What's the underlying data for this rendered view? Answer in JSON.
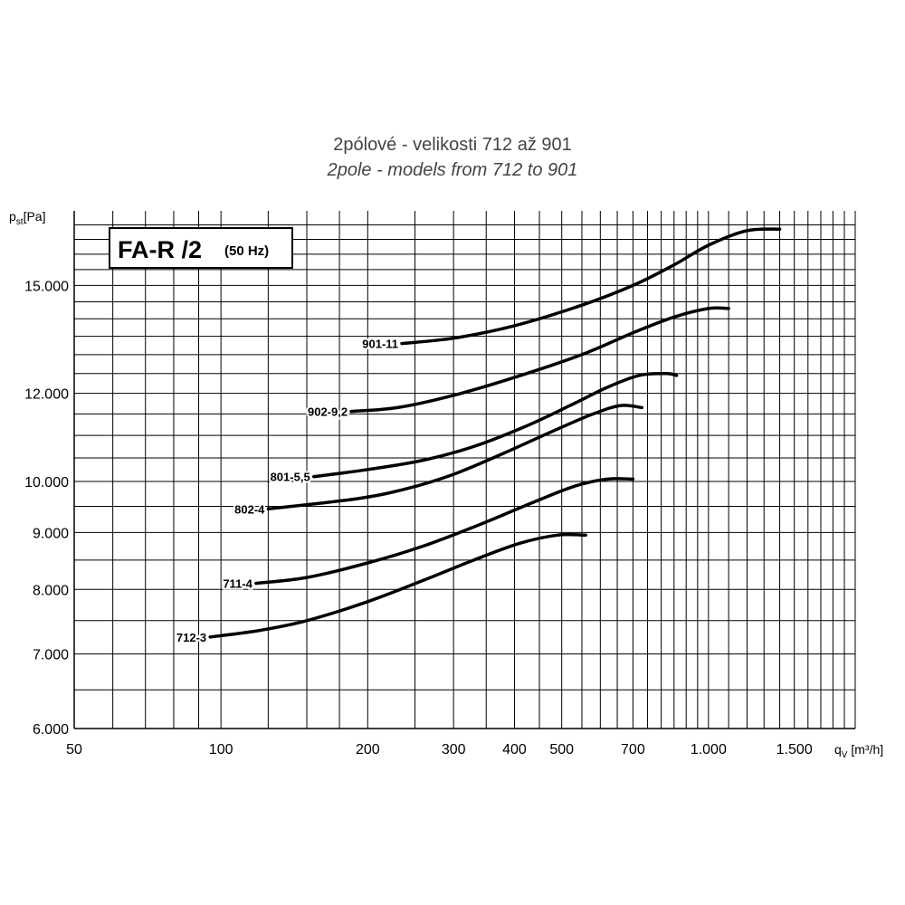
{
  "chart_data": {
    "type": "line",
    "title": "2pólové - velikosti 712 až 901",
    "subtitle": "2pole - models from 712 to 901",
    "ylabel": "[Pa]",
    "ylabel_symbol": "p",
    "ylabel_sub": "st",
    "xlabel": " [m³/h]",
    "xlabel_symbol": "q",
    "xlabel_sub": "V",
    "x_scale": "log",
    "y_scale": "log",
    "xlim": [
      50,
      2000
    ],
    "ylim": [
      6000,
      17500
    ],
    "grid": true,
    "legend_box": {
      "main": "FA-R /2",
      "note": "(50 Hz)"
    },
    "x_ticks": [
      {
        "value": 50,
        "label": "50"
      },
      {
        "value": 100,
        "label": "100"
      },
      {
        "value": 200,
        "label": "200"
      },
      {
        "value": 300,
        "label": "300"
      },
      {
        "value": 400,
        "label": "400"
      },
      {
        "value": 500,
        "label": "500"
      },
      {
        "value": 700,
        "label": "700"
      },
      {
        "value": 1000,
        "label": "1.000"
      },
      {
        "value": 1500,
        "label": "1.500"
      }
    ],
    "y_ticks": [
      {
        "value": 6000,
        "label": "6.000"
      },
      {
        "value": 7000,
        "label": "7.000"
      },
      {
        "value": 8000,
        "label": "8.000"
      },
      {
        "value": 9000,
        "label": "9.000"
      },
      {
        "value": 10000,
        "label": "10.000"
      },
      {
        "value": 12000,
        "label": "12.000"
      },
      {
        "value": 15000,
        "label": "15.000"
      }
    ],
    "series": [
      {
        "name": "901-11",
        "x": [
          235,
          300,
          400,
          550,
          700,
          850,
          1000,
          1200,
          1400
        ],
        "y": [
          13300,
          13450,
          13800,
          14400,
          15000,
          15650,
          16300,
          16800,
          16850
        ]
      },
      {
        "name": "902-9,2",
        "x": [
          185,
          230,
          300,
          400,
          550,
          700,
          850,
          1000,
          1100
        ],
        "y": [
          11560,
          11650,
          11950,
          12400,
          13000,
          13600,
          14050,
          14300,
          14300
        ]
      },
      {
        "name": "801-5,5",
        "x": [
          155,
          200,
          260,
          330,
          420,
          520,
          620,
          720,
          820,
          860
        ],
        "y": [
          10100,
          10250,
          10450,
          10750,
          11200,
          11700,
          12150,
          12450,
          12500,
          12450
        ]
      },
      {
        "name": "802-4",
        "x": [
          125,
          190,
          240,
          300,
          380,
          480,
          580,
          660,
          730
        ],
        "y": [
          9450,
          9650,
          9850,
          10150,
          10600,
          11100,
          11500,
          11700,
          11650
        ]
      },
      {
        "name": "711-4",
        "x": [
          118,
          150,
          200,
          260,
          340,
          430,
          530,
          620,
          700
        ],
        "y": [
          8100,
          8200,
          8450,
          8750,
          9150,
          9550,
          9900,
          10050,
          10050
        ]
      },
      {
        "name": "712-3",
        "x": [
          95,
          120,
          150,
          200,
          260,
          330,
          410,
          490,
          560
        ],
        "y": [
          7250,
          7350,
          7500,
          7800,
          8150,
          8500,
          8800,
          8950,
          8950
        ]
      }
    ]
  }
}
